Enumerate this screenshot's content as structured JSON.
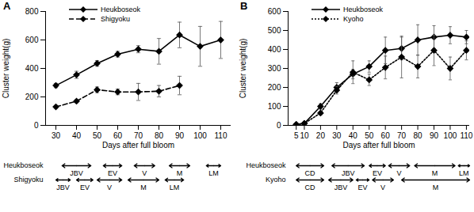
{
  "chart_data": [
    {
      "type": "line",
      "title": "A",
      "x_label": "Days after full bloom",
      "y_label": "Cluster weight(g)",
      "xlim": [
        25,
        115
      ],
      "xticks": [
        30,
        40,
        50,
        60,
        70,
        80,
        90,
        100,
        110
      ],
      "ylim": [
        0,
        800
      ],
      "yticks": [
        0,
        200,
        400,
        600,
        800
      ],
      "grid": false,
      "legend": "upper left",
      "x": [
        30,
        40,
        50,
        60,
        70,
        80,
        90,
        100,
        110
      ],
      "series": [
        {
          "name": "Heukboseok",
          "color": "#000000",
          "line_style": "solid",
          "marker": "diamond",
          "values": [
            280,
            355,
            435,
            500,
            535,
            520,
            635,
            555,
            600
          ],
          "error": [
            15,
            25,
            20,
            20,
            25,
            90,
            90,
            140,
            130
          ]
        },
        {
          "name": "Shigyoku",
          "color": "#000000",
          "line_style": "dashed",
          "marker": "diamond",
          "values": [
            130,
            170,
            250,
            235,
            235,
            240,
            280,
            null,
            null
          ],
          "error": [
            10,
            10,
            20,
            20,
            60,
            40,
            65,
            null,
            null
          ]
        }
      ],
      "stages": [
        {
          "name": "Heukboseok",
          "periods": [
            {
              "label": "JBV",
              "start": 33,
              "end": 47
            },
            {
              "label": "EV",
              "start": 53,
              "end": 62
            },
            {
              "label": "V",
              "start": 68,
              "end": 78
            },
            {
              "label": "M",
              "start": 85,
              "end": 95
            },
            {
              "label": "LM",
              "start": 103,
              "end": 110
            }
          ]
        },
        {
          "name": "Shigyoku",
          "periods": [
            {
              "label": "JBV",
              "start": 30,
              "end": 37
            },
            {
              "label": "EV",
              "start": 40,
              "end": 48
            },
            {
              "label": "V",
              "start": 50,
              "end": 62
            },
            {
              "label": "M",
              "start": 65,
              "end": 80
            },
            {
              "label": "LM",
              "start": 83,
              "end": 92
            }
          ]
        }
      ]
    },
    {
      "type": "line",
      "title": "B",
      "x_label": "Days after full bloom",
      "y_label": "Cluster weight(g)",
      "xlim": [
        0,
        112
      ],
      "xticks": [
        5,
        10,
        20,
        30,
        40,
        50,
        60,
        70,
        80,
        90,
        100,
        110
      ],
      "ylim": [
        0,
        600
      ],
      "yticks": [
        0,
        100,
        200,
        300,
        400,
        500,
        600
      ],
      "grid": false,
      "legend": "upper left",
      "x": [
        5,
        10,
        20,
        30,
        40,
        50,
        60,
        70,
        80,
        90,
        100,
        110
      ],
      "series": [
        {
          "name": "Heukboseok",
          "color": "#000000",
          "line_style": "solid",
          "marker": "diamond",
          "values": [
            5,
            10,
            100,
            200,
            270,
            310,
            395,
            405,
            450,
            465,
            475,
            465
          ],
          "error": [
            0,
            2,
            15,
            25,
            25,
            30,
            70,
            60,
            80,
            60,
            45,
            35
          ]
        },
        {
          "name": "Kyoho",
          "color": "#000000",
          "line_style": "dotted",
          "marker": "diamond",
          "values": [
            5,
            10,
            65,
            185,
            280,
            240,
            305,
            360,
            310,
            395,
            300,
            395
          ],
          "error": [
            0,
            2,
            10,
            20,
            60,
            30,
            60,
            110,
            60,
            80,
            60,
            50
          ]
        }
      ],
      "stages": [
        {
          "name": "Heukboseok",
          "periods": [
            {
              "label": "CD",
              "start": 5,
              "end": 22
            },
            {
              "label": "JBV",
              "start": 27,
              "end": 47
            },
            {
              "label": "EV",
              "start": 50,
              "end": 60
            },
            {
              "label": "V",
              "start": 62,
              "end": 75
            },
            {
              "label": "M",
              "start": 78,
              "end": 103
            },
            {
              "label": "LM",
              "start": 105,
              "end": 112
            }
          ]
        },
        {
          "name": "Kyoho",
          "periods": [
            {
              "label": "CD",
              "start": 5,
              "end": 22
            },
            {
              "label": "JBV",
              "start": 25,
              "end": 40
            },
            {
              "label": "EV",
              "start": 42,
              "end": 50
            },
            {
              "label": "V",
              "start": 52,
              "end": 65
            },
            {
              "label": "M",
              "start": 70,
              "end": 112
            }
          ]
        }
      ]
    }
  ]
}
